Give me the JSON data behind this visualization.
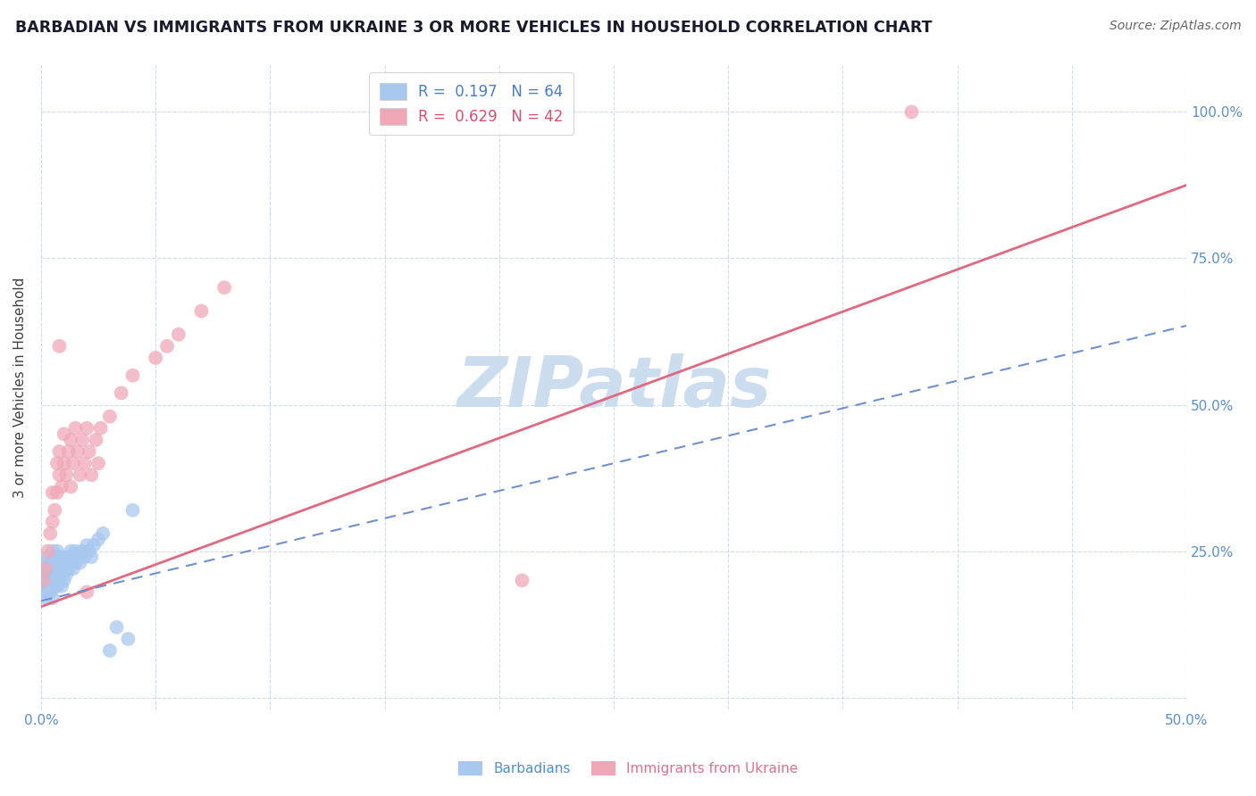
{
  "title": "BARBADIAN VS IMMIGRANTS FROM UKRAINE 3 OR MORE VEHICLES IN HOUSEHOLD CORRELATION CHART",
  "source": "Source: ZipAtlas.com",
  "ylabel": "3 or more Vehicles in Household",
  "xlim": [
    0.0,
    0.5
  ],
  "ylim": [
    -0.02,
    1.08
  ],
  "ytick_positions": [
    0.0,
    0.25,
    0.5,
    0.75,
    1.0
  ],
  "yticklabels_right": [
    "",
    "25.0%",
    "50.0%",
    "75.0%",
    "100.0%"
  ],
  "xtick_positions": [
    0.0,
    0.05,
    0.1,
    0.15,
    0.2,
    0.25,
    0.3,
    0.35,
    0.4,
    0.45,
    0.5
  ],
  "xticklabels": [
    "0.0%",
    "",
    "",
    "",
    "",
    "",
    "",
    "",
    "",
    "",
    "50.0%"
  ],
  "grid_color": "#c8d8e8",
  "background_color": "#ffffff",
  "watermark": "ZIPatlas",
  "watermark_color": "#ccddf0",
  "barbadian_color": "#a8c8f0",
  "ukraine_color": "#f0a8b8",
  "barbadian_line_color": "#7090d0",
  "ukraine_line_color": "#e06880",
  "legend_label_blue": "R =  0.197   N = 64",
  "legend_label_pink": "R =  0.629   N = 42",
  "ukraine_line_x0": 0.0,
  "ukraine_line_y0": 0.155,
  "ukraine_line_x1": 0.5,
  "ukraine_line_y1": 0.875,
  "barbadian_line_x0": 0.0,
  "barbadian_line_y0": 0.165,
  "barbadian_line_x1": 0.5,
  "barbadian_line_y1": 0.635,
  "barbadian_x": [
    0.001,
    0.001,
    0.001,
    0.002,
    0.002,
    0.002,
    0.002,
    0.003,
    0.003,
    0.003,
    0.003,
    0.003,
    0.003,
    0.004,
    0.004,
    0.004,
    0.004,
    0.004,
    0.005,
    0.005,
    0.005,
    0.005,
    0.005,
    0.006,
    0.006,
    0.006,
    0.006,
    0.007,
    0.007,
    0.007,
    0.007,
    0.008,
    0.008,
    0.008,
    0.009,
    0.009,
    0.009,
    0.01,
    0.01,
    0.01,
    0.011,
    0.011,
    0.012,
    0.012,
    0.013,
    0.013,
    0.014,
    0.014,
    0.015,
    0.015,
    0.016,
    0.017,
    0.018,
    0.019,
    0.02,
    0.021,
    0.022,
    0.023,
    0.025,
    0.027,
    0.03,
    0.033,
    0.038,
    0.04
  ],
  "barbadian_y": [
    0.2,
    0.18,
    0.22,
    0.19,
    0.21,
    0.17,
    0.23,
    0.2,
    0.22,
    0.18,
    0.21,
    0.24,
    0.19,
    0.2,
    0.22,
    0.18,
    0.21,
    0.23,
    0.19,
    0.21,
    0.23,
    0.17,
    0.25,
    0.2,
    0.22,
    0.19,
    0.24,
    0.21,
    0.23,
    0.19,
    0.25,
    0.22,
    0.2,
    0.24,
    0.21,
    0.23,
    0.19,
    0.22,
    0.2,
    0.24,
    0.23,
    0.21,
    0.22,
    0.24,
    0.23,
    0.25,
    0.22,
    0.24,
    0.23,
    0.25,
    0.24,
    0.23,
    0.25,
    0.24,
    0.26,
    0.25,
    0.24,
    0.26,
    0.27,
    0.28,
    0.08,
    0.12,
    0.1,
    0.32
  ],
  "ukraine_x": [
    0.001,
    0.002,
    0.003,
    0.004,
    0.005,
    0.005,
    0.006,
    0.007,
    0.007,
    0.008,
    0.008,
    0.009,
    0.01,
    0.01,
    0.011,
    0.012,
    0.013,
    0.013,
    0.014,
    0.015,
    0.016,
    0.017,
    0.018,
    0.019,
    0.02,
    0.021,
    0.022,
    0.024,
    0.025,
    0.026,
    0.03,
    0.035,
    0.04,
    0.05,
    0.055,
    0.06,
    0.07,
    0.08,
    0.21,
    0.38,
    0.02,
    0.008
  ],
  "ukraine_y": [
    0.2,
    0.22,
    0.25,
    0.28,
    0.3,
    0.35,
    0.32,
    0.4,
    0.35,
    0.38,
    0.42,
    0.36,
    0.4,
    0.45,
    0.38,
    0.42,
    0.36,
    0.44,
    0.4,
    0.46,
    0.42,
    0.38,
    0.44,
    0.4,
    0.46,
    0.42,
    0.38,
    0.44,
    0.4,
    0.46,
    0.48,
    0.52,
    0.55,
    0.58,
    0.6,
    0.62,
    0.66,
    0.7,
    0.2,
    1.0,
    0.18,
    0.6
  ]
}
